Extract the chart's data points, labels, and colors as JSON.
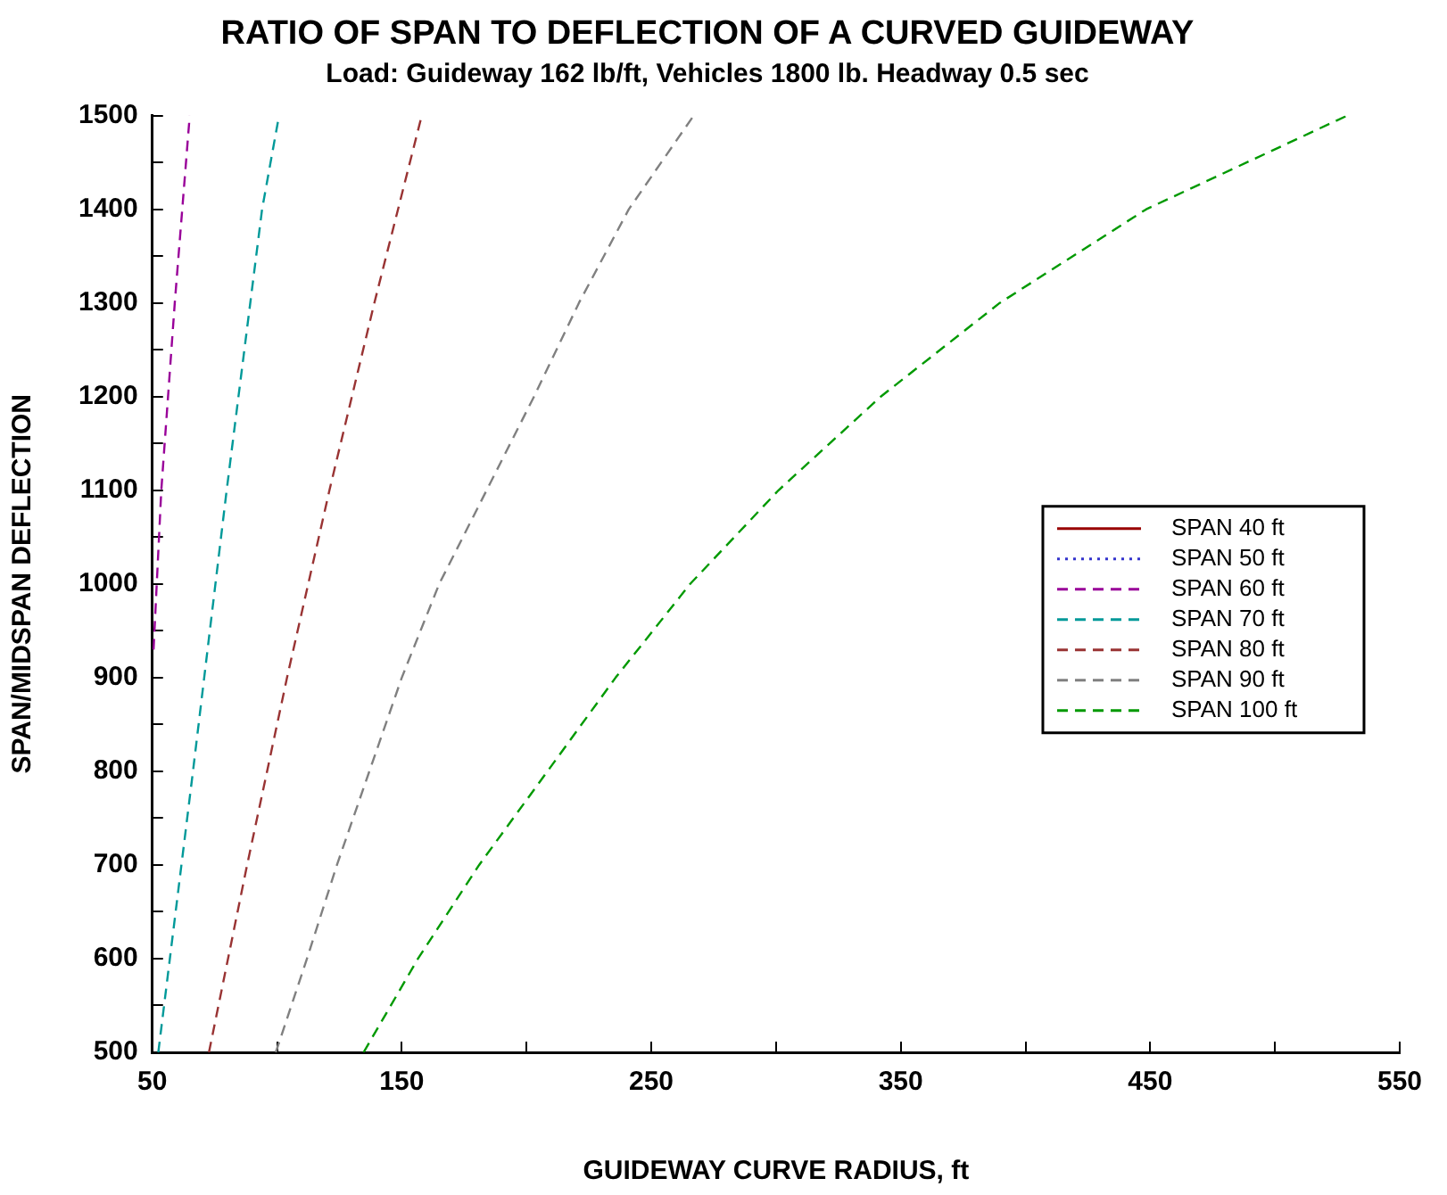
{
  "chart_data": {
    "type": "line",
    "title": "RATIO OF SPAN TO DEFLECTION OF A CURVED GUIDEWAY",
    "subtitle": "Load: Guideway 162 lb/ft, Vehicles 1800 lb. Headway 0.5 sec",
    "xlabel": "GUIDEWAY CURVE RADIUS, ft",
    "ylabel": "SPAN/MIDSPAN DEFLECTION",
    "xlim": [
      50,
      550
    ],
    "ylim": [
      500,
      1500
    ],
    "xticks": [
      50,
      {
        "value": 100,
        "label": null
      },
      150,
      {
        "value": 200,
        "label": null
      },
      250,
      {
        "value": 300,
        "label": null
      },
      350,
      {
        "value": 400,
        "label": null
      },
      450,
      {
        "value": 500,
        "label": null
      },
      550
    ],
    "yticks": [
      500,
      {
        "value": 550,
        "label": null
      },
      600,
      {
        "value": 650,
        "label": null
      },
      700,
      {
        "value": 750,
        "label": null
      },
      800,
      {
        "value": 850,
        "label": null
      },
      900,
      {
        "value": 950,
        "label": null
      },
      1000,
      {
        "value": 1050,
        "label": null
      },
      1100,
      {
        "value": 1150,
        "label": null
      },
      1200,
      {
        "value": 1250,
        "label": null
      },
      1300,
      {
        "value": 1350,
        "label": null
      },
      1400,
      {
        "value": 1450,
        "label": null
      },
      1500
    ],
    "grid": false,
    "legend": "right",
    "marker": "none",
    "series": [
      {
        "name": "SPAN 40 ft",
        "color": "#990000",
        "line_style": "solid"
      },
      {
        "name": "SPAN 50 ft",
        "color": "#3333cc",
        "line_style": "dotted"
      },
      {
        "name": "SPAN 60 ft",
        "color": "#990099",
        "line_style": "dashed",
        "x": [
          50.5,
          53.6,
          59,
          65
        ],
        "values": [
          930,
          1100,
          1300,
          1500
        ]
      },
      {
        "name": "SPAN 70 ft",
        "color": "#009999",
        "line_style": "dashed",
        "x": [
          52.4,
          66.3,
          79.8,
          94,
          100.8
        ],
        "values": [
          500,
          800,
          1100,
          1400,
          1500
        ]
      },
      {
        "name": "SPAN 80 ft",
        "color": "#993333",
        "line_style": "dashed",
        "x": [
          72.7,
          88,
          104,
          121,
          139,
          158
        ],
        "values": [
          500,
          700,
          900,
          1100,
          1300,
          1500
        ]
      },
      {
        "name": "SPAN 90 ft",
        "color": "#808080",
        "line_style": "dashed",
        "x": [
          99.5,
          112,
          124,
          137,
          150,
          165,
          184,
          203,
          221,
          241,
          267
        ],
        "values": [
          500,
          600,
          700,
          800,
          900,
          1000,
          1100,
          1200,
          1300,
          1400,
          1500
        ]
      },
      {
        "name": "SPAN 100 ft",
        "color": "#009900",
        "line_style": "dashed",
        "x": [
          134.7,
          156.5,
          181,
          208.4,
          235.7,
          265.6,
          301,
          342,
          389.7,
          448.4,
          529
        ],
        "values": [
          500,
          600,
          700,
          800,
          900,
          1000,
          1100,
          1200,
          1300,
          1400,
          1500
        ]
      }
    ]
  }
}
